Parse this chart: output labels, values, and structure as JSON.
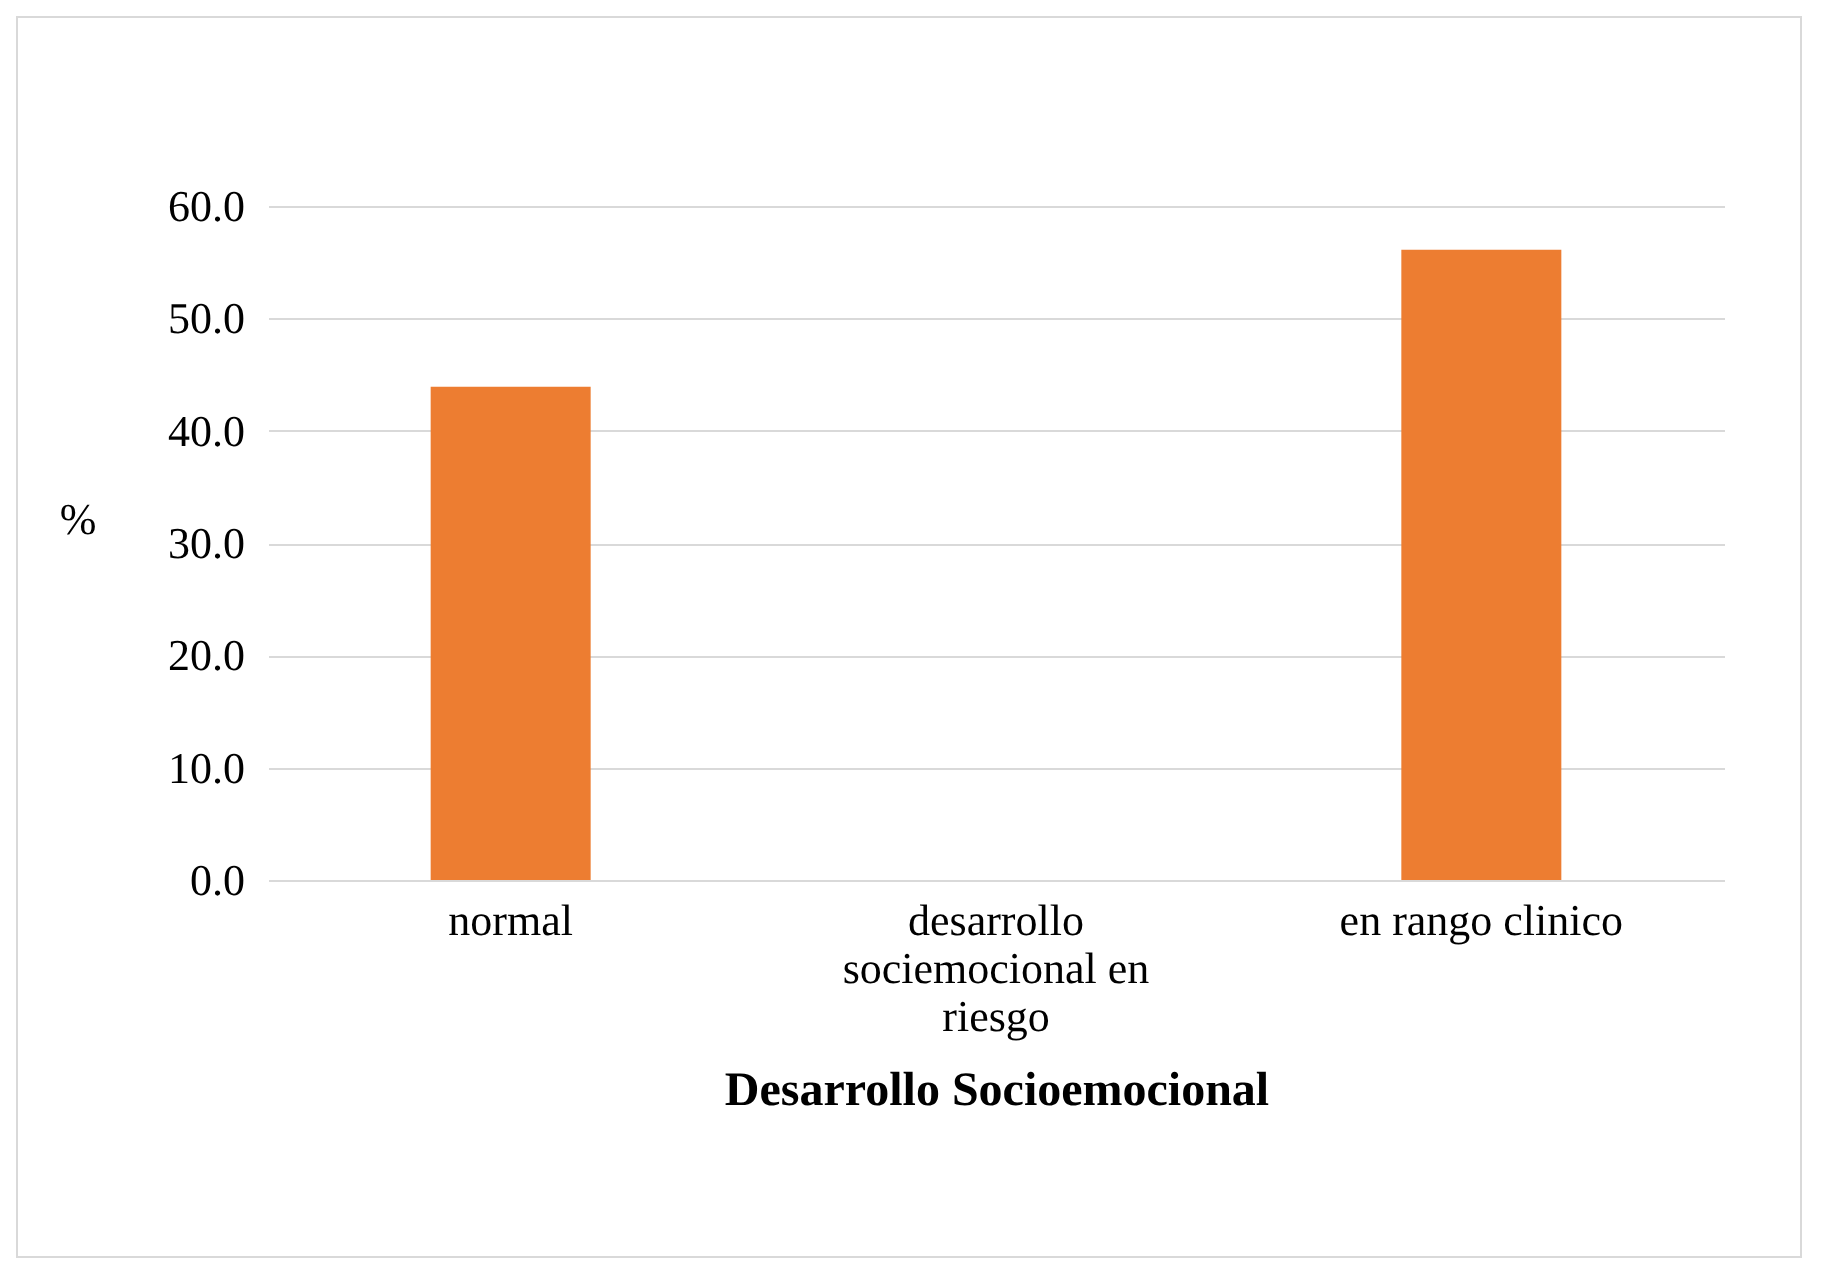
{
  "chart_data": {
    "type": "bar",
    "xlabel": "Desarrollo Socioemocional",
    "ylabel": "%",
    "categories": [
      "normal",
      "desarrollo sociemocional en riesgo",
      "en rango clinico"
    ],
    "values": [
      43.9,
      0,
      56.1
    ],
    "color": "#ed7d31",
    "ylim": [
      0,
      60
    ],
    "yticks": [
      {
        "value": 0,
        "label": "0.0"
      },
      {
        "value": 10,
        "label": "10.0"
      },
      {
        "value": 20,
        "label": "20.0"
      },
      {
        "value": 30,
        "label": "30.0"
      },
      {
        "value": 40,
        "label": "40.0"
      },
      {
        "value": 50,
        "label": "50.0"
      },
      {
        "value": 60,
        "label": "60.0"
      }
    ],
    "grid": "y"
  }
}
